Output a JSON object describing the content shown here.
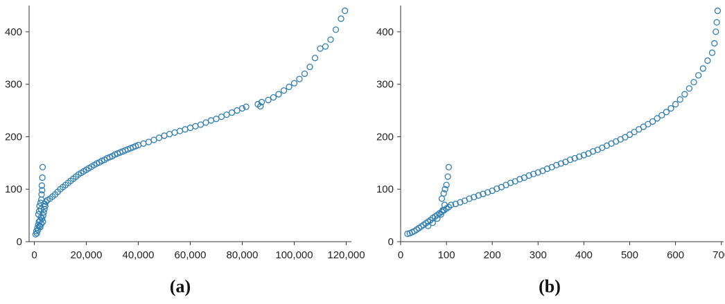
{
  "colors": {
    "marker": "#2E7DB2",
    "axis": "#333333"
  },
  "chart_data": [
    {
      "type": "scatter",
      "panel_label": "(a)",
      "title": "",
      "xlabel": "",
      "ylabel": "",
      "xlim": [
        -2000,
        122000
      ],
      "ylim": [
        0,
        450
      ],
      "xticks": [
        0,
        20000,
        40000,
        60000,
        80000,
        100000,
        120000
      ],
      "xtick_labels": [
        "0",
        "20,000",
        "40,000",
        "60,000",
        "80,000",
        "100,000",
        "120,000"
      ],
      "yticks": [
        0,
        100,
        200,
        300,
        400
      ],
      "ytick_labels": [
        "0",
        "100",
        "200",
        "300",
        "400"
      ],
      "grid": false,
      "legend": "none",
      "series": [
        {
          "points": [
            [
              500,
              14
            ],
            [
              800,
              20
            ],
            [
              1200,
              26
            ],
            [
              1500,
              32
            ],
            [
              1800,
              38
            ],
            [
              1000,
              16
            ],
            [
              1400,
              22
            ],
            [
              2000,
              30
            ],
            [
              2200,
              40
            ],
            [
              2500,
              46
            ],
            [
              1600,
              52
            ],
            [
              1900,
              58
            ],
            [
              2600,
              62
            ],
            [
              2000,
              68
            ],
            [
              2400,
              74
            ],
            [
              2700,
              80
            ],
            [
              2800,
              90
            ],
            [
              3000,
              98
            ],
            [
              2900,
              107
            ],
            [
              3100,
              122
            ],
            [
              3200,
              142
            ],
            [
              2300,
              28
            ],
            [
              2700,
              34
            ],
            [
              3300,
              38
            ],
            [
              3000,
              44
            ],
            [
              3400,
              50
            ],
            [
              3600,
              56
            ],
            [
              3900,
              62
            ],
            [
              4200,
              68
            ],
            [
              4000,
              72
            ],
            [
              4500,
              76
            ],
            [
              5000,
              79
            ],
            [
              6000,
              82
            ],
            [
              7000,
              86
            ],
            [
              8000,
              90
            ],
            [
              9000,
              95
            ],
            [
              10000,
              100
            ],
            [
              11000,
              104
            ],
            [
              12000,
              108
            ],
            [
              13000,
              112
            ],
            [
              14000,
              116
            ],
            [
              15000,
              120
            ],
            [
              16000,
              124
            ],
            [
              17000,
              128
            ],
            [
              18000,
              131
            ],
            [
              19000,
              134
            ],
            [
              20000,
              137
            ],
            [
              21000,
              140
            ],
            [
              22000,
              143
            ],
            [
              23000,
              146
            ],
            [
              24000,
              149
            ],
            [
              25000,
              151
            ],
            [
              26000,
              154
            ],
            [
              27000,
              156
            ],
            [
              28000,
              159
            ],
            [
              29000,
              161
            ],
            [
              30000,
              163
            ],
            [
              31000,
              166
            ],
            [
              32000,
              168
            ],
            [
              33000,
              170
            ],
            [
              34000,
              172
            ],
            [
              35000,
              174
            ],
            [
              36000,
              176
            ],
            [
              37000,
              178
            ],
            [
              38000,
              180
            ],
            [
              39000,
              182
            ],
            [
              40000,
              184
            ],
            [
              42000,
              187
            ],
            [
              44000,
              190
            ],
            [
              46000,
              194
            ],
            [
              48000,
              198
            ],
            [
              50000,
              202
            ],
            [
              52000,
              205
            ],
            [
              54000,
              208
            ],
            [
              56000,
              211
            ],
            [
              58000,
              214
            ],
            [
              60000,
              217
            ],
            [
              62000,
              220
            ],
            [
              64000,
              223
            ],
            [
              66000,
              227
            ],
            [
              68000,
              231
            ],
            [
              70000,
              234
            ],
            [
              72000,
              238
            ],
            [
              74000,
              242
            ],
            [
              76000,
              246
            ],
            [
              78000,
              250
            ],
            [
              80000,
              254
            ],
            [
              81500,
              257
            ],
            [
              86000,
              262
            ],
            [
              87000,
              258
            ],
            [
              87500,
              266
            ],
            [
              90000,
              270
            ],
            [
              92000,
              275
            ],
            [
              94000,
              281
            ],
            [
              96000,
              288
            ],
            [
              98000,
              295
            ],
            [
              100000,
              302
            ],
            [
              102000,
              310
            ],
            [
              104000,
              320
            ],
            [
              106000,
              333
            ],
            [
              108000,
              350
            ],
            [
              110000,
              368
            ],
            [
              112000,
              372
            ],
            [
              114000,
              385
            ],
            [
              116000,
              404
            ],
            [
              118000,
              425
            ],
            [
              119500,
              440
            ]
          ]
        }
      ]
    },
    {
      "type": "scatter",
      "panel_label": "(b)",
      "title": "",
      "xlabel": "",
      "ylabel": "",
      "xlim": [
        0,
        705
      ],
      "ylim": [
        0,
        450
      ],
      "xticks": [
        0,
        100,
        200,
        300,
        400,
        500,
        600,
        700
      ],
      "xtick_labels": [
        "0",
        "100",
        "200",
        "300",
        "400",
        "500",
        "600",
        "700"
      ],
      "yticks": [
        0,
        100,
        200,
        300,
        400
      ],
      "ytick_labels": [
        "0",
        "100",
        "200",
        "300",
        "400"
      ],
      "grid": false,
      "legend": "none",
      "series": [
        {
          "points": [
            [
              15,
              15
            ],
            [
              20,
              16
            ],
            [
              25,
              18
            ],
            [
              30,
              20
            ],
            [
              35,
              23
            ],
            [
              40,
              26
            ],
            [
              45,
              29
            ],
            [
              50,
              32
            ],
            [
              55,
              35
            ],
            [
              60,
              38
            ],
            [
              65,
              41
            ],
            [
              70,
              45
            ],
            [
              75,
              48
            ],
            [
              80,
              51
            ],
            [
              85,
              54
            ],
            [
              90,
              57
            ],
            [
              95,
              60
            ],
            [
              100,
              63
            ],
            [
              105,
              66
            ],
            [
              110,
              70
            ],
            [
              60,
              30
            ],
            [
              70,
              36
            ],
            [
              80,
              44
            ],
            [
              88,
              52
            ],
            [
              92,
              60
            ],
            [
              96,
              70
            ],
            [
              90,
              82
            ],
            [
              94,
              92
            ],
            [
              97,
              100
            ],
            [
              100,
              108
            ],
            [
              103,
              124
            ],
            [
              105,
              142
            ],
            [
              120,
              72
            ],
            [
              130,
              75
            ],
            [
              140,
              78
            ],
            [
              150,
              82
            ],
            [
              160,
              85
            ],
            [
              170,
              88
            ],
            [
              180,
              91
            ],
            [
              190,
              94
            ],
            [
              200,
              97
            ],
            [
              210,
              101
            ],
            [
              220,
              104
            ],
            [
              230,
              108
            ],
            [
              240,
              112
            ],
            [
              250,
              115
            ],
            [
              260,
              119
            ],
            [
              270,
              122
            ],
            [
              280,
              126
            ],
            [
              290,
              129
            ],
            [
              300,
              132
            ],
            [
              310,
              135
            ],
            [
              320,
              139
            ],
            [
              330,
              142
            ],
            [
              340,
              146
            ],
            [
              350,
              149
            ],
            [
              360,
              152
            ],
            [
              370,
              156
            ],
            [
              380,
              159
            ],
            [
              390,
              162
            ],
            [
              400,
              165
            ],
            [
              410,
              168
            ],
            [
              420,
              172
            ],
            [
              430,
              175
            ],
            [
              440,
              179
            ],
            [
              450,
              183
            ],
            [
              460,
              187
            ],
            [
              470,
              191
            ],
            [
              480,
              195
            ],
            [
              490,
              199
            ],
            [
              500,
              204
            ],
            [
              510,
              209
            ],
            [
              520,
              214
            ],
            [
              530,
              219
            ],
            [
              540,
              224
            ],
            [
              550,
              229
            ],
            [
              560,
              235
            ],
            [
              570,
              241
            ],
            [
              580,
              247
            ],
            [
              590,
              254
            ],
            [
              600,
              262
            ],
            [
              610,
              271
            ],
            [
              620,
              281
            ],
            [
              630,
              292
            ],
            [
              640,
              304
            ],
            [
              650,
              317
            ],
            [
              660,
              330
            ],
            [
              670,
              345
            ],
            [
              680,
              360
            ],
            [
              685,
              378
            ],
            [
              688,
              400
            ],
            [
              690,
              418
            ],
            [
              692,
              440
            ]
          ]
        }
      ]
    }
  ]
}
